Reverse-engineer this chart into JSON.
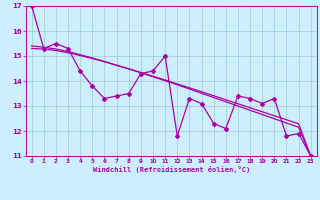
{
  "xlabel": "Windchill (Refroidissement éolien,°C)",
  "x": [
    0,
    1,
    2,
    3,
    4,
    5,
    6,
    7,
    8,
    9,
    10,
    11,
    12,
    13,
    14,
    15,
    16,
    17,
    18,
    19,
    20,
    21,
    22,
    23
  ],
  "y_zigzag": [
    17.0,
    15.3,
    15.5,
    15.3,
    14.4,
    13.8,
    13.3,
    13.4,
    13.5,
    14.3,
    14.4,
    15.0,
    11.8,
    13.3,
    13.1,
    12.3,
    12.1,
    13.4,
    13.3,
    13.1,
    13.3,
    11.8,
    11.9,
    11.0
  ],
  "y_trend1": [
    15.4,
    15.35,
    15.28,
    15.18,
    15.05,
    14.92,
    14.78,
    14.63,
    14.48,
    14.33,
    14.17,
    14.01,
    13.85,
    13.68,
    13.51,
    13.34,
    13.17,
    13.0,
    12.83,
    12.66,
    12.49,
    12.32,
    12.15,
    11.0
  ],
  "y_trend2": [
    15.3,
    15.28,
    15.22,
    15.13,
    15.02,
    14.9,
    14.77,
    14.63,
    14.49,
    14.34,
    14.19,
    14.04,
    13.88,
    13.73,
    13.57,
    13.41,
    13.25,
    13.09,
    12.93,
    12.77,
    12.61,
    12.45,
    12.29,
    11.0
  ],
  "color": "#aa00aa",
  "bg_color": "#cceeff",
  "grid_color": "#99cccc",
  "ylim": [
    11,
    17
  ],
  "yticks": [
    11,
    12,
    13,
    14,
    15,
    16,
    17
  ],
  "xlim": [
    -0.5,
    23.5
  ],
  "xticks": [
    0,
    1,
    2,
    3,
    4,
    5,
    6,
    7,
    8,
    9,
    10,
    11,
    12,
    13,
    14,
    15,
    16,
    17,
    18,
    19,
    20,
    21,
    22,
    23
  ]
}
